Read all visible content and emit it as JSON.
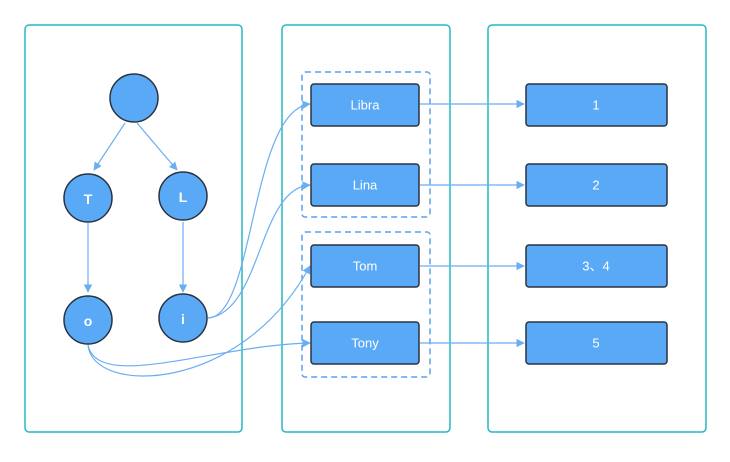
{
  "colors": {
    "panel_border": "#26b9c4",
    "group_border": "#5aa2ec",
    "node_fill": "#5aa9f7",
    "node_stroke": "#2a3340",
    "edge": "#6aaef2",
    "text": "#ffffff"
  },
  "trie": {
    "root": "",
    "nodes": [
      "T",
      "L",
      "o",
      "i"
    ]
  },
  "keys": [
    "Libra",
    "Lina",
    "Tom",
    "Tony"
  ],
  "values": [
    "1",
    "2",
    "3、4",
    "5"
  ]
}
